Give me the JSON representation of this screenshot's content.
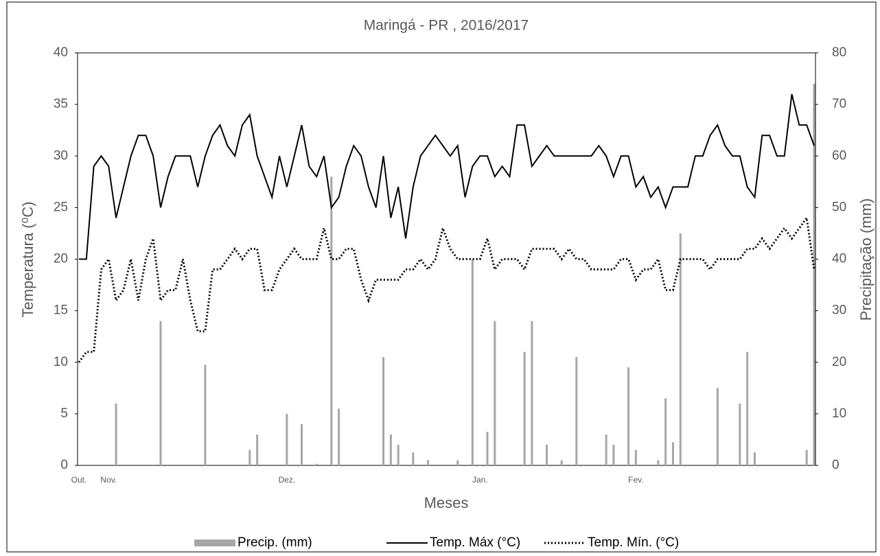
{
  "chart_data": {
    "type": "combo",
    "title": "Maringá - PR , 2016/2017",
    "x_label": "Meses",
    "y_label": "Temperatura (⁰C)",
    "y2_label": "Precipitação (mm)",
    "categories": [
      "Out.",
      null,
      null,
      null,
      "Nov.",
      null,
      null,
      null,
      null,
      null,
      null,
      null,
      null,
      null,
      null,
      null,
      null,
      null,
      null,
      null,
      null,
      null,
      null,
      null,
      null,
      null,
      null,
      null,
      "Dez.",
      null,
      null,
      null,
      null,
      null,
      null,
      null,
      null,
      null,
      null,
      null,
      null,
      null,
      null,
      null,
      null,
      null,
      null,
      null,
      null,
      null,
      null,
      null,
      null,
      null,
      "Jan.",
      null,
      null,
      null,
      null,
      null,
      null,
      null,
      null,
      null,
      null,
      null,
      null,
      null,
      null,
      null,
      null,
      null,
      null,
      null,
      null,
      "Fev.",
      null,
      null,
      null,
      null,
      null,
      null,
      null,
      null,
      null,
      null,
      null,
      null,
      null,
      null,
      null,
      null,
      null,
      null,
      null,
      null,
      null,
      null,
      null,
      null
    ],
    "ylim": [
      0,
      40
    ],
    "yticks": [
      0,
      5,
      10,
      15,
      20,
      25,
      30,
      35,
      40
    ],
    "y2lim": [
      0,
      80
    ],
    "y2ticks": [
      0,
      10,
      20,
      30,
      40,
      50,
      60,
      70,
      80
    ],
    "series": [
      {
        "name": "Precip. (mm)",
        "type": "bar",
        "axis": "y2",
        "color": "#a6a6a6",
        "values": [
          0,
          0,
          0,
          0,
          0,
          12,
          0,
          0,
          0,
          0,
          0,
          28,
          0,
          0,
          0,
          0,
          0,
          19.5,
          0,
          0,
          0,
          0,
          0,
          3,
          6,
          0,
          0,
          0,
          10,
          0,
          8,
          0,
          0.3,
          0,
          56,
          11,
          0,
          0,
          0,
          0,
          0,
          21,
          6,
          4,
          0,
          2.5,
          0,
          1,
          0,
          0,
          0,
          1,
          0,
          40,
          0,
          6.5,
          28,
          0,
          0,
          0,
          22,
          28,
          0,
          4,
          0,
          1,
          0,
          21,
          0,
          0,
          0,
          6,
          4,
          0,
          19,
          3,
          0,
          0,
          1,
          13,
          4.5,
          45,
          0,
          0,
          0,
          0,
          15,
          0,
          0,
          12,
          22,
          2.5,
          0,
          0,
          0,
          0,
          0,
          0,
          3,
          74
        ]
      },
      {
        "name": "Temp. Máx (°C)",
        "type": "line",
        "color": "#000000",
        "dash": "solid",
        "values": [
          20,
          20,
          29,
          30,
          29,
          24,
          27,
          30,
          32,
          32,
          30,
          25,
          28,
          30,
          30,
          30,
          27,
          30,
          32,
          33,
          31,
          30,
          33,
          34,
          30,
          28,
          26,
          30,
          27,
          30,
          33,
          29,
          28,
          30,
          25,
          26,
          29,
          31,
          30,
          27,
          25,
          30,
          24,
          27,
          22,
          27,
          30,
          31,
          32,
          31,
          30,
          31,
          26,
          29,
          30,
          30,
          28,
          29,
          28,
          33,
          33,
          29,
          30,
          31,
          30,
          30,
          30,
          30,
          30,
          30,
          31,
          30,
          28,
          30,
          30,
          27,
          28,
          26,
          27,
          25,
          27,
          27,
          27,
          30,
          30,
          32,
          33,
          31,
          30,
          30,
          27,
          26,
          32,
          32,
          30,
          30,
          36,
          33,
          33,
          31
        ]
      },
      {
        "name": "Temp. Mín. (°C)",
        "type": "line",
        "color": "#000000",
        "dash": "dot",
        "values": [
          10,
          11,
          11,
          19,
          20,
          16,
          17,
          20,
          16,
          20,
          22,
          16,
          17,
          17,
          20,
          16,
          13,
          13,
          19,
          19,
          20,
          21,
          20,
          21,
          21,
          17,
          17,
          19,
          20,
          21,
          20,
          20,
          20,
          23,
          20,
          20,
          21,
          21,
          18,
          16,
          18,
          18,
          18,
          18,
          19,
          19,
          20,
          19,
          20,
          23,
          21,
          20,
          20,
          20,
          20,
          22,
          19,
          20,
          20,
          20,
          19,
          21,
          21,
          21,
          21,
          20,
          21,
          20,
          20,
          19,
          19,
          19,
          19,
          20,
          20,
          18,
          19,
          19,
          20,
          17,
          17,
          20,
          20,
          20,
          20,
          19,
          20,
          20,
          20,
          20,
          21,
          21,
          22,
          21,
          22,
          23,
          22,
          23,
          24,
          19
        ]
      }
    ]
  }
}
